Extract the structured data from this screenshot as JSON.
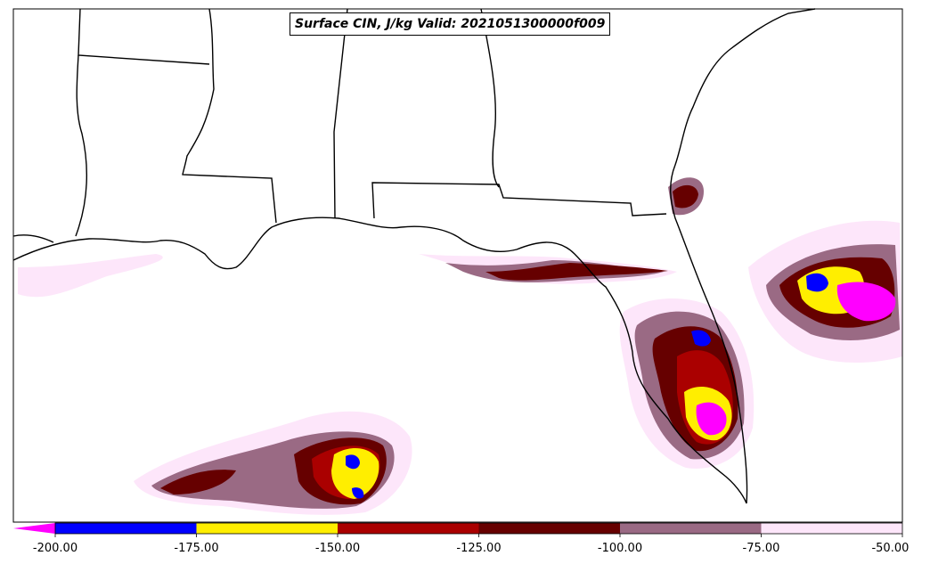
{
  "title": "Surface CIN, J/kg Valid: 2021051300000f009",
  "colorbar": {
    "ticks": [
      "-200.00",
      "-175.00",
      "-150.00",
      "-125.00",
      "-100.00",
      "-75.00",
      "-50.00"
    ],
    "bins": [
      {
        "from": -200,
        "to": -175,
        "color": "#0000ff"
      },
      {
        "from": -175,
        "to": -150,
        "color": "#ffee00"
      },
      {
        "from": -150,
        "to": -125,
        "color": "#aa0000"
      },
      {
        "from": -125,
        "to": -100,
        "color": "#660000"
      },
      {
        "from": -100,
        "to": -75,
        "color": "#9a6a84"
      },
      {
        "from": -75,
        "to": -50,
        "color": "#fde6fa"
      }
    ],
    "extend_min_color": "#ff00ff"
  },
  "colors": {
    "magenta": "#ff00ff",
    "blue": "#0000ff",
    "yellow": "#ffee00",
    "red": "#aa0000",
    "darkred": "#660000",
    "mauve": "#9a6a84",
    "pink": "#fde6fa",
    "coast": "#000000"
  }
}
